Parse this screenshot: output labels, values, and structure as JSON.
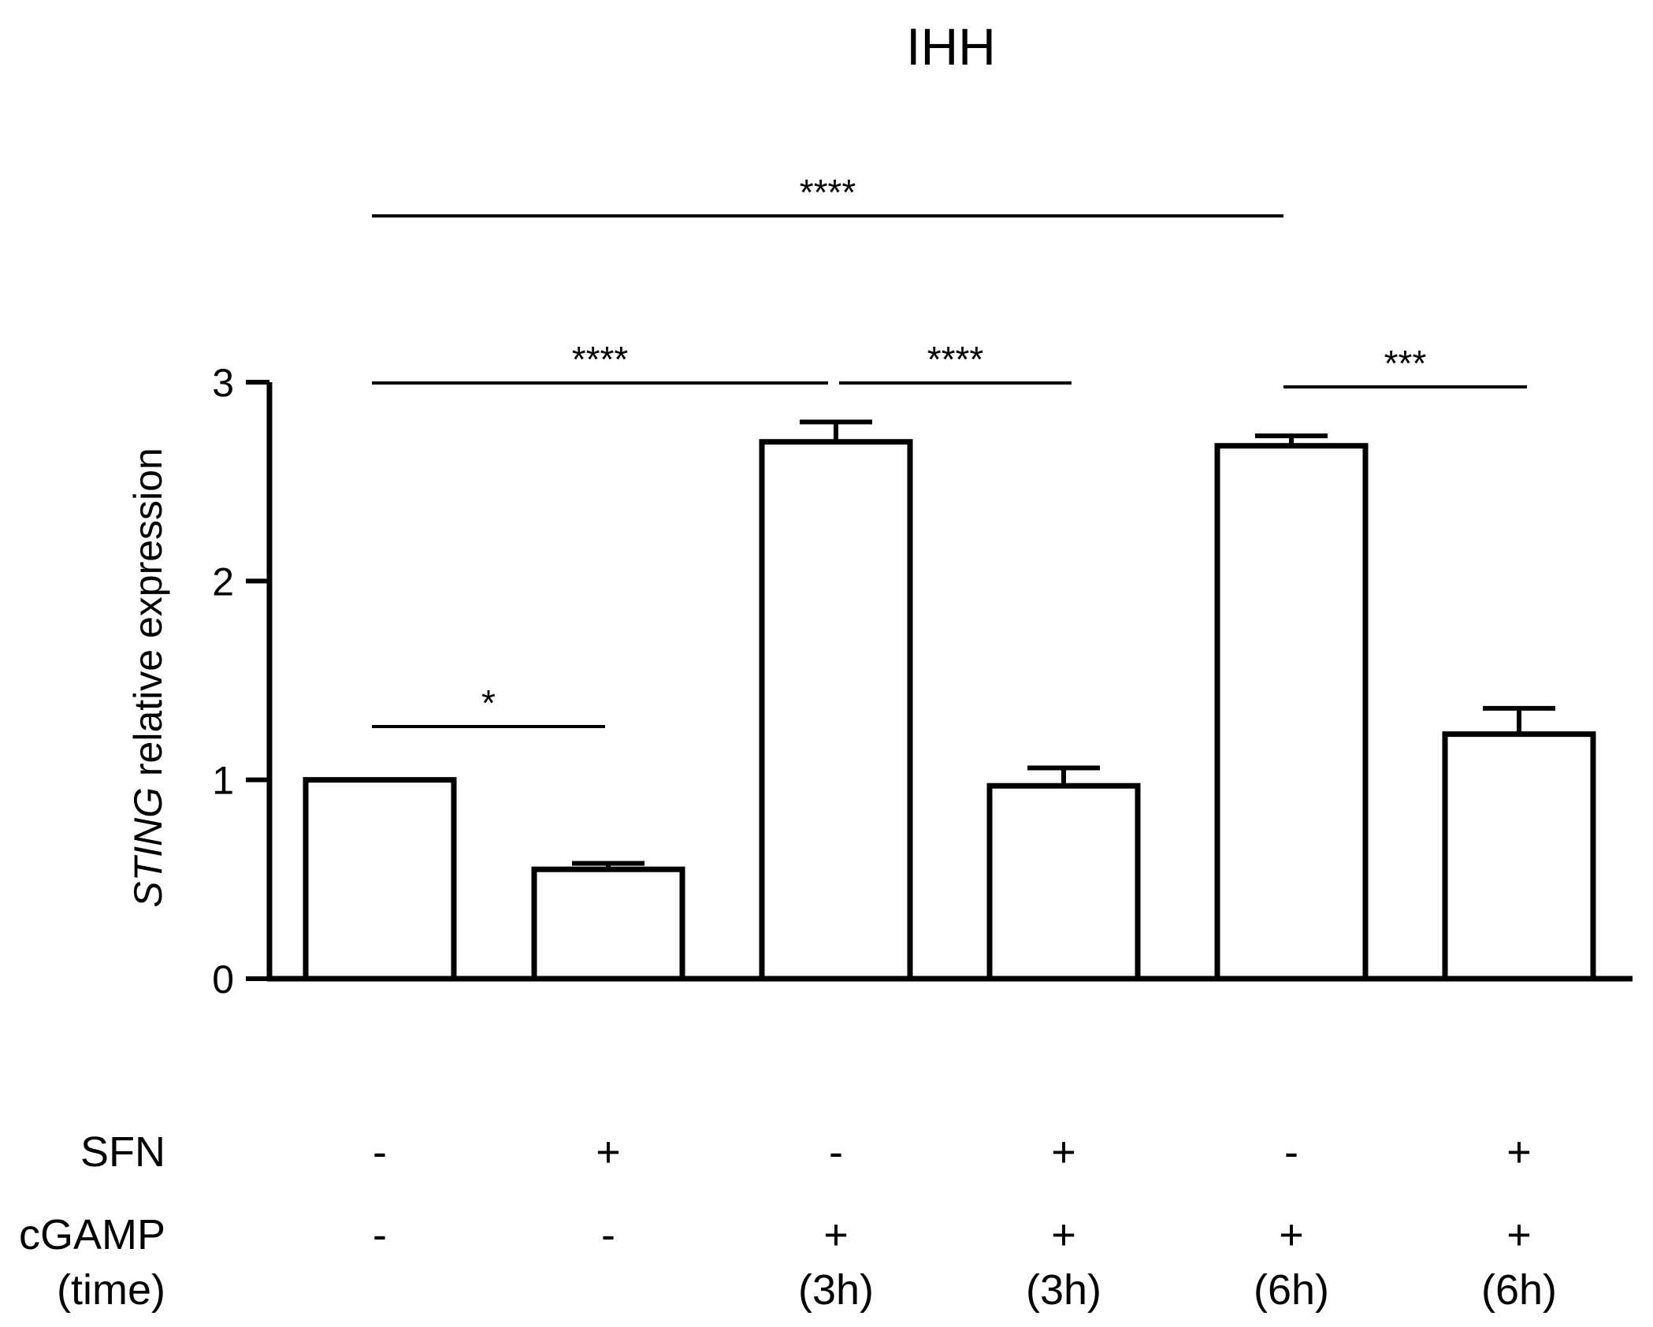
{
  "chart_data": {
    "type": "bar",
    "title": "IHH",
    "ylabel": {
      "italic": "STING",
      "rest": " relative expression"
    },
    "ylim": [
      0,
      3
    ],
    "yticks": [
      0,
      1,
      2,
      3
    ],
    "grid": false,
    "legend": "none",
    "bar_fill": "#ffffff",
    "stroke_color": "#000000",
    "values": [
      1.0,
      0.55,
      2.7,
      0.97,
      2.68,
      1.23
    ],
    "errors": [
      0.0,
      0.03,
      0.1,
      0.09,
      0.05,
      0.13
    ],
    "conditions": [
      {
        "label": "SFN",
        "values": [
          "-",
          "+",
          "-",
          "+",
          "-",
          "+"
        ]
      },
      {
        "label": "cGAMP",
        "values": [
          "-",
          "-",
          "+",
          "+",
          "+",
          "+"
        ]
      },
      {
        "label": "(time)",
        "values": [
          "",
          "",
          "(3h)",
          "(3h)",
          "(6h)",
          "(6h)"
        ]
      }
    ],
    "significance": [
      {
        "from": 0,
        "to": 1,
        "label": "*"
      },
      {
        "from": 0,
        "to": 2,
        "label": "****"
      },
      {
        "from": 2,
        "to": 3,
        "label": "****"
      },
      {
        "from": 4,
        "to": 5,
        "label": "***"
      },
      {
        "from": 0,
        "to": 4,
        "label": "****"
      }
    ]
  }
}
